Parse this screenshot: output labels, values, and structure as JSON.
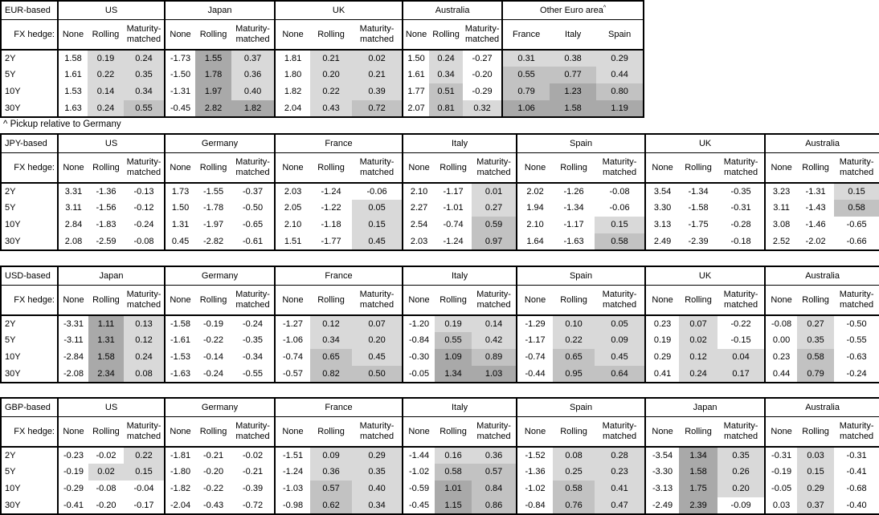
{
  "footnote": "^ Pickup relative to Germany",
  "labels": {
    "fx_hedge": "FX hedge:",
    "hedge_types": [
      "None",
      "Rolling",
      "Maturity-matched"
    ]
  },
  "tenors": [
    "2Y",
    "5Y",
    "10Y",
    "30Y"
  ],
  "shading": {
    "thresholds": [
      0,
      0.5,
      1
    ],
    "colors": {
      "negative": "#ffffff",
      "low": "#d9d9d9",
      "mid": "#c2c2c2",
      "high": "#a9a9a9"
    },
    "rule": "Rolling, Maturity-matched and pickup cells shaded by value; None column unshaded"
  },
  "tables": [
    {
      "base": "EUR-based",
      "groups": [
        {
          "country": "US",
          "type": "hedge",
          "rows": [
            [
              "1.58",
              "0.19",
              "0.24"
            ],
            [
              "1.61",
              "0.22",
              "0.35"
            ],
            [
              "1.53",
              "0.14",
              "0.34"
            ],
            [
              "1.63",
              "0.24",
              "0.55"
            ]
          ]
        },
        {
          "country": "Japan",
          "type": "hedge",
          "rows": [
            [
              "-1.73",
              "1.55",
              "0.37"
            ],
            [
              "-1.50",
              "1.78",
              "0.36"
            ],
            [
              "-1.31",
              "1.97",
              "0.40"
            ],
            [
              "-0.45",
              "2.82",
              "1.82"
            ]
          ]
        },
        {
          "country": "UK",
          "type": "hedge",
          "rows": [
            [
              "1.81",
              "0.21",
              "0.02"
            ],
            [
              "1.80",
              "0.20",
              "0.21"
            ],
            [
              "1.82",
              "0.22",
              "0.39"
            ],
            [
              "2.04",
              "0.43",
              "0.72"
            ]
          ]
        },
        {
          "country": "Australia",
          "type": "hedge",
          "rows": [
            [
              "1.50",
              "0.24",
              "-0.27"
            ],
            [
              "1.61",
              "0.34",
              "-0.20"
            ],
            [
              "1.77",
              "0.51",
              "-0.29"
            ],
            [
              "2.07",
              "0.81",
              "0.32"
            ]
          ]
        },
        {
          "country": "Other Euro area",
          "superscript": "^",
          "type": "pickup",
          "columns": [
            "France",
            "Italy",
            "Spain"
          ],
          "rows": [
            [
              "0.31",
              "0.38",
              "0.29"
            ],
            [
              "0.55",
              "0.77",
              "0.44"
            ],
            [
              "0.79",
              "1.23",
              "0.80"
            ],
            [
              "1.06",
              "1.58",
              "1.19"
            ]
          ]
        }
      ]
    },
    {
      "base": "JPY-based",
      "groups": [
        {
          "country": "US",
          "type": "hedge",
          "rows": [
            [
              "3.31",
              "-1.36",
              "-0.13"
            ],
            [
              "3.11",
              "-1.56",
              "-0.12"
            ],
            [
              "2.84",
              "-1.83",
              "-0.24"
            ],
            [
              "2.08",
              "-2.59",
              "-0.08"
            ]
          ]
        },
        {
          "country": "Germany",
          "type": "hedge",
          "rows": [
            [
              "1.73",
              "-1.55",
              "-0.37"
            ],
            [
              "1.50",
              "-1.78",
              "-0.50"
            ],
            [
              "1.31",
              "-1.97",
              "-0.65"
            ],
            [
              "0.45",
              "-2.82",
              "-0.61"
            ]
          ]
        },
        {
          "country": "France",
          "type": "hedge",
          "rows": [
            [
              "2.03",
              "-1.24",
              "-0.06"
            ],
            [
              "2.05",
              "-1.22",
              "0.05"
            ],
            [
              "2.10",
              "-1.18",
              "0.15"
            ],
            [
              "1.51",
              "-1.77",
              "0.45"
            ]
          ]
        },
        {
          "country": "Italy",
          "type": "hedge",
          "rows": [
            [
              "2.10",
              "-1.17",
              "0.01"
            ],
            [
              "2.27",
              "-1.01",
              "0.27"
            ],
            [
              "2.54",
              "-0.74",
              "0.59"
            ],
            [
              "2.03",
              "-1.24",
              "0.97"
            ]
          ]
        },
        {
          "country": "Spain",
          "type": "hedge",
          "rows": [
            [
              "2.02",
              "-1.26",
              "-0.08"
            ],
            [
              "1.94",
              "-1.34",
              "-0.06"
            ],
            [
              "2.10",
              "-1.17",
              "0.15"
            ],
            [
              "1.64",
              "-1.63",
              "0.58"
            ]
          ]
        },
        {
          "country": "UK",
          "type": "hedge",
          "rows": [
            [
              "3.54",
              "-1.34",
              "-0.35"
            ],
            [
              "3.30",
              "-1.58",
              "-0.31"
            ],
            [
              "3.13",
              "-1.75",
              "-0.28"
            ],
            [
              "2.49",
              "-2.39",
              "-0.18"
            ]
          ]
        },
        {
          "country": "Australia",
          "type": "hedge",
          "rows": [
            [
              "3.23",
              "-1.31",
              "0.15"
            ],
            [
              "3.11",
              "-1.43",
              "0.58"
            ],
            [
              "3.08",
              "-1.46",
              "-0.65"
            ],
            [
              "2.52",
              "-2.02",
              "-0.66"
            ]
          ]
        }
      ]
    },
    {
      "base": "USD-based",
      "groups": [
        {
          "country": "Japan",
          "type": "hedge",
          "rows": [
            [
              "-3.31",
              "1.11",
              "0.13"
            ],
            [
              "-3.11",
              "1.31",
              "0.12"
            ],
            [
              "-2.84",
              "1.58",
              "0.24"
            ],
            [
              "-2.08",
              "2.34",
              "0.08"
            ]
          ]
        },
        {
          "country": "Germany",
          "type": "hedge",
          "rows": [
            [
              "-1.58",
              "-0.19",
              "-0.24"
            ],
            [
              "-1.61",
              "-0.22",
              "-0.35"
            ],
            [
              "-1.53",
              "-0.14",
              "-0.34"
            ],
            [
              "-1.63",
              "-0.24",
              "-0.55"
            ]
          ]
        },
        {
          "country": "France",
          "type": "hedge",
          "rows": [
            [
              "-1.27",
              "0.12",
              "0.07"
            ],
            [
              "-1.06",
              "0.34",
              "0.20"
            ],
            [
              "-0.74",
              "0.65",
              "0.45"
            ],
            [
              "-0.57",
              "0.82",
              "0.50"
            ]
          ]
        },
        {
          "country": "Italy",
          "type": "hedge",
          "rows": [
            [
              "-1.20",
              "0.19",
              "0.14"
            ],
            [
              "-0.84",
              "0.55",
              "0.42"
            ],
            [
              "-0.30",
              "1.09",
              "0.89"
            ],
            [
              "-0.05",
              "1.34",
              "1.03"
            ]
          ]
        },
        {
          "country": "Spain",
          "type": "hedge",
          "rows": [
            [
              "-1.29",
              "0.10",
              "0.05"
            ],
            [
              "-1.17",
              "0.22",
              "0.09"
            ],
            [
              "-0.74",
              "0.65",
              "0.45"
            ],
            [
              "-0.44",
              "0.95",
              "0.64"
            ]
          ]
        },
        {
          "country": "UK",
          "type": "hedge",
          "rows": [
            [
              "0.23",
              "0.07",
              "-0.22"
            ],
            [
              "0.19",
              "0.02",
              "-0.15"
            ],
            [
              "0.29",
              "0.12",
              "0.04"
            ],
            [
              "0.41",
              "0.24",
              "0.17"
            ]
          ]
        },
        {
          "country": "Australia",
          "type": "hedge",
          "rows": [
            [
              "-0.08",
              "0.27",
              "-0.50"
            ],
            [
              "0.00",
              "0.35",
              "-0.55"
            ],
            [
              "0.23",
              "0.58",
              "-0.63"
            ],
            [
              "0.44",
              "0.79",
              "-0.24"
            ]
          ]
        }
      ]
    },
    {
      "base": "GBP-based",
      "groups": [
        {
          "country": "US",
          "type": "hedge",
          "rows": [
            [
              "-0.23",
              "-0.02",
              "0.22"
            ],
            [
              "-0.19",
              "0.02",
              "0.15"
            ],
            [
              "-0.29",
              "-0.08",
              "-0.04"
            ],
            [
              "-0.41",
              "-0.20",
              "-0.17"
            ]
          ]
        },
        {
          "country": "Germany",
          "type": "hedge",
          "rows": [
            [
              "-1.81",
              "-0.21",
              "-0.02"
            ],
            [
              "-1.80",
              "-0.20",
              "-0.21"
            ],
            [
              "-1.82",
              "-0.22",
              "-0.39"
            ],
            [
              "-2.04",
              "-0.43",
              "-0.72"
            ]
          ]
        },
        {
          "country": "France",
          "type": "hedge",
          "rows": [
            [
              "-1.51",
              "0.09",
              "0.29"
            ],
            [
              "-1.24",
              "0.36",
              "0.35"
            ],
            [
              "-1.03",
              "0.57",
              "0.40"
            ],
            [
              "-0.98",
              "0.62",
              "0.34"
            ]
          ]
        },
        {
          "country": "Italy",
          "type": "hedge",
          "rows": [
            [
              "-1.44",
              "0.16",
              "0.36"
            ],
            [
              "-1.02",
              "0.58",
              "0.57"
            ],
            [
              "-0.59",
              "1.01",
              "0.84"
            ],
            [
              "-0.45",
              "1.15",
              "0.86"
            ]
          ]
        },
        {
          "country": "Spain",
          "type": "hedge",
          "rows": [
            [
              "-1.52",
              "0.08",
              "0.28"
            ],
            [
              "-1.36",
              "0.25",
              "0.23"
            ],
            [
              "-1.02",
              "0.58",
              "0.41"
            ],
            [
              "-0.84",
              "0.76",
              "0.47"
            ]
          ]
        },
        {
          "country": "Japan",
          "type": "hedge",
          "rows": [
            [
              "-3.54",
              "1.34",
              "0.35"
            ],
            [
              "-3.30",
              "1.58",
              "0.26"
            ],
            [
              "-3.13",
              "1.75",
              "0.20"
            ],
            [
              "-2.49",
              "2.39",
              "-0.09"
            ]
          ]
        },
        {
          "country": "Australia",
          "type": "hedge",
          "rows": [
            [
              "-0.31",
              "0.03",
              "-0.31"
            ],
            [
              "-0.19",
              "0.15",
              "-0.41"
            ],
            [
              "-0.05",
              "0.29",
              "-0.68"
            ],
            [
              "0.03",
              "0.37",
              "-0.40"
            ]
          ]
        }
      ]
    }
  ]
}
